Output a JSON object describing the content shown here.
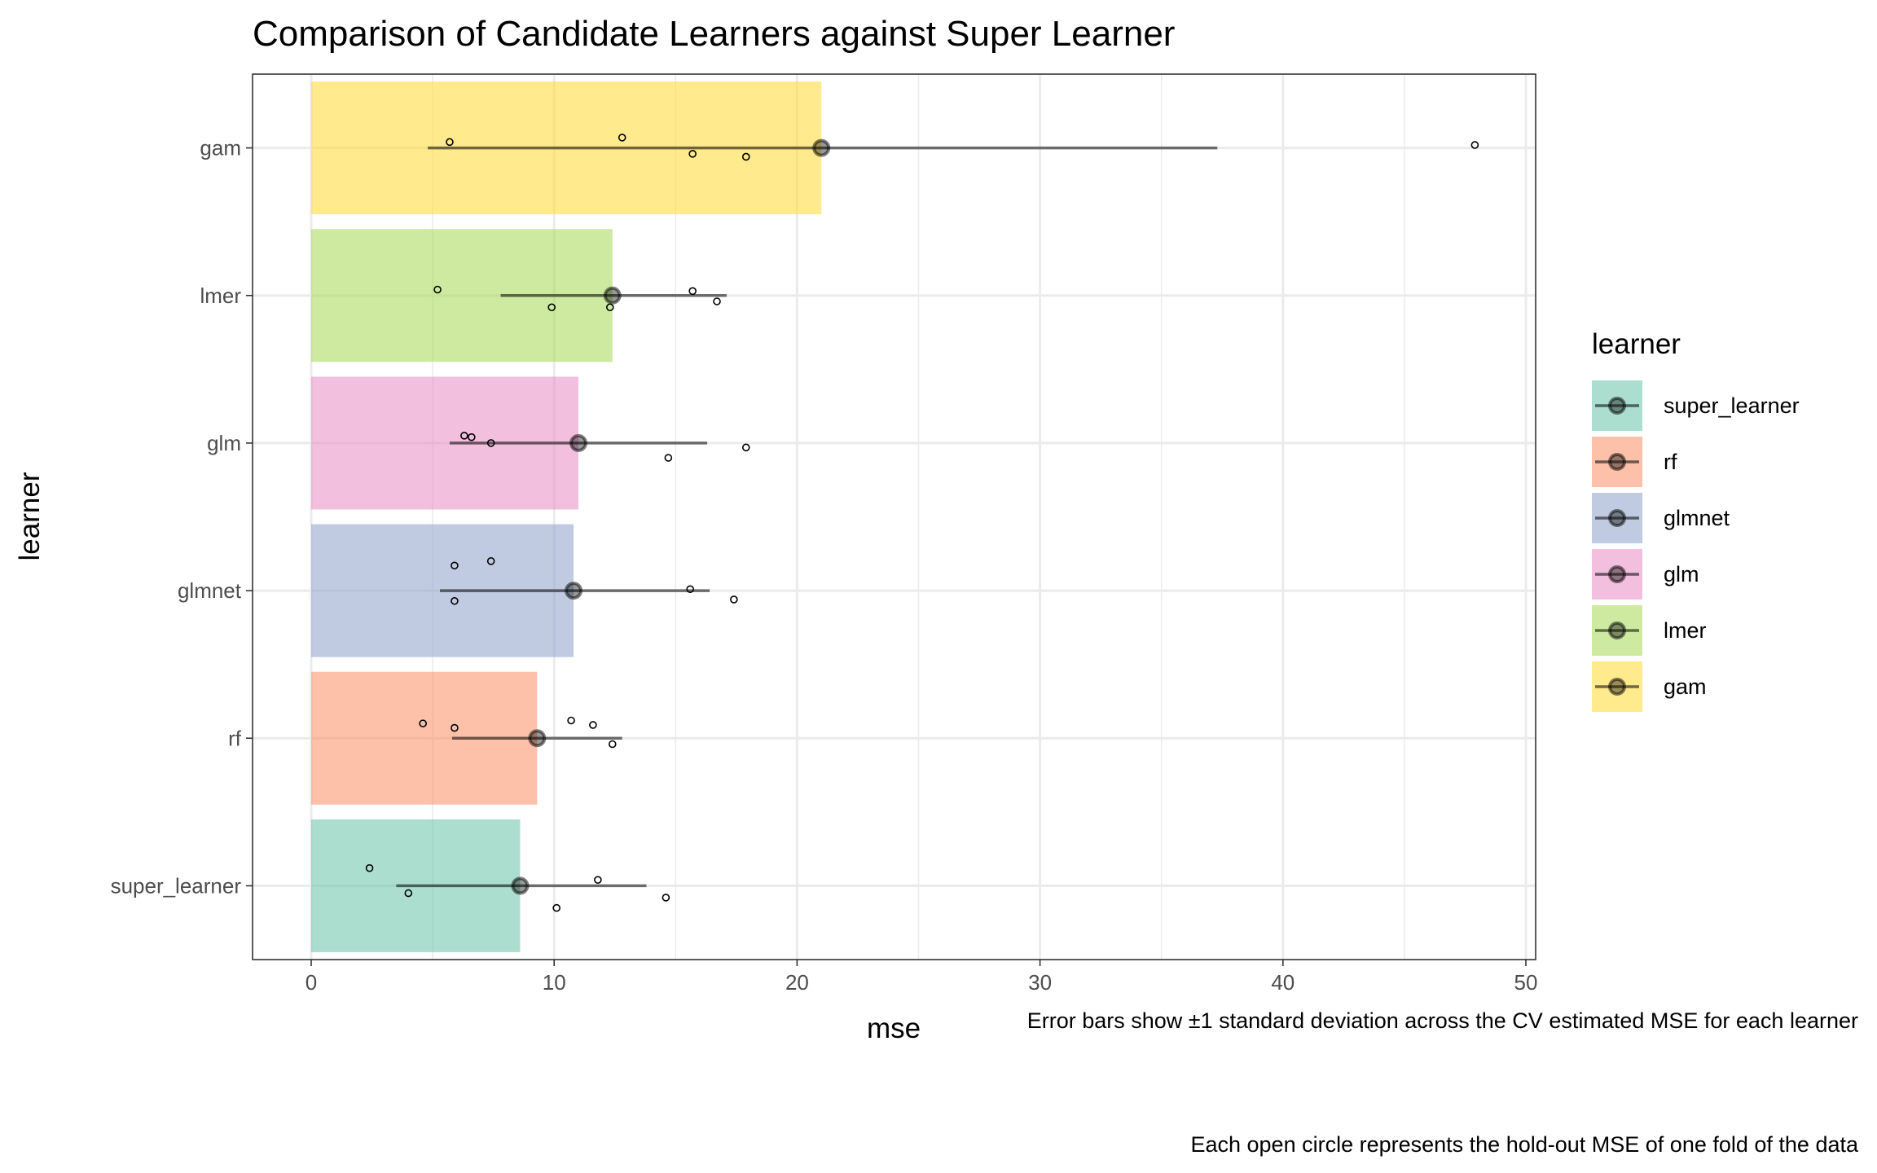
{
  "chart_data": {
    "type": "bar",
    "title": "Comparison of Candidate Learners against Super Learner",
    "xlabel": "mse",
    "ylabel": "learner",
    "xlim": [
      0,
      50
    ],
    "x_ticks": [
      "0",
      "10",
      "20",
      "30",
      "40",
      "50"
    ],
    "grid": true,
    "orientation": "horizontal",
    "categories": [
      "super_learner",
      "rf",
      "glmnet",
      "glm",
      "lmer",
      "gam"
    ],
    "series": [
      {
        "learner": "super_learner",
        "mean_mse": 8.6,
        "sd_low": 3.5,
        "sd_high": 13.8,
        "fold_mse": [
          2.4,
          4.0,
          10.1,
          11.8,
          14.6
        ],
        "color": "#66c2a5"
      },
      {
        "learner": "rf",
        "mean_mse": 9.3,
        "sd_low": 5.8,
        "sd_high": 12.8,
        "fold_mse": [
          4.6,
          5.9,
          10.7,
          11.6,
          12.4
        ],
        "color": "#fc8d62"
      },
      {
        "learner": "glmnet",
        "mean_mse": 10.8,
        "sd_low": 5.3,
        "sd_high": 16.4,
        "fold_mse": [
          5.9,
          5.9,
          7.4,
          15.6,
          17.4
        ],
        "color": "#8da0cb"
      },
      {
        "learner": "glm",
        "mean_mse": 11.0,
        "sd_low": 5.7,
        "sd_high": 16.3,
        "fold_mse": [
          6.3,
          6.6,
          7.4,
          14.7,
          17.9
        ],
        "color": "#e78ac3"
      },
      {
        "learner": "lmer",
        "mean_mse": 12.4,
        "sd_low": 7.8,
        "sd_high": 17.1,
        "fold_mse": [
          5.2,
          9.9,
          12.3,
          15.7,
          16.7
        ],
        "color": "#a6d854"
      },
      {
        "learner": "gam",
        "mean_mse": 21.0,
        "sd_low": 4.8,
        "sd_high": 37.3,
        "fold_mse": [
          5.7,
          12.8,
          15.7,
          17.9,
          47.9
        ],
        "color": "#ffd92f"
      }
    ],
    "legend": {
      "title": "learner",
      "position": "right",
      "items": [
        "super_learner",
        "rf",
        "glmnet",
        "glm",
        "lmer",
        "gam"
      ]
    },
    "captions": [
      "Error bars show ±1 standard deviation across the CV estimated MSE for each learner",
      "Each open circle represents the hold-out MSE of one fold of the data"
    ]
  }
}
